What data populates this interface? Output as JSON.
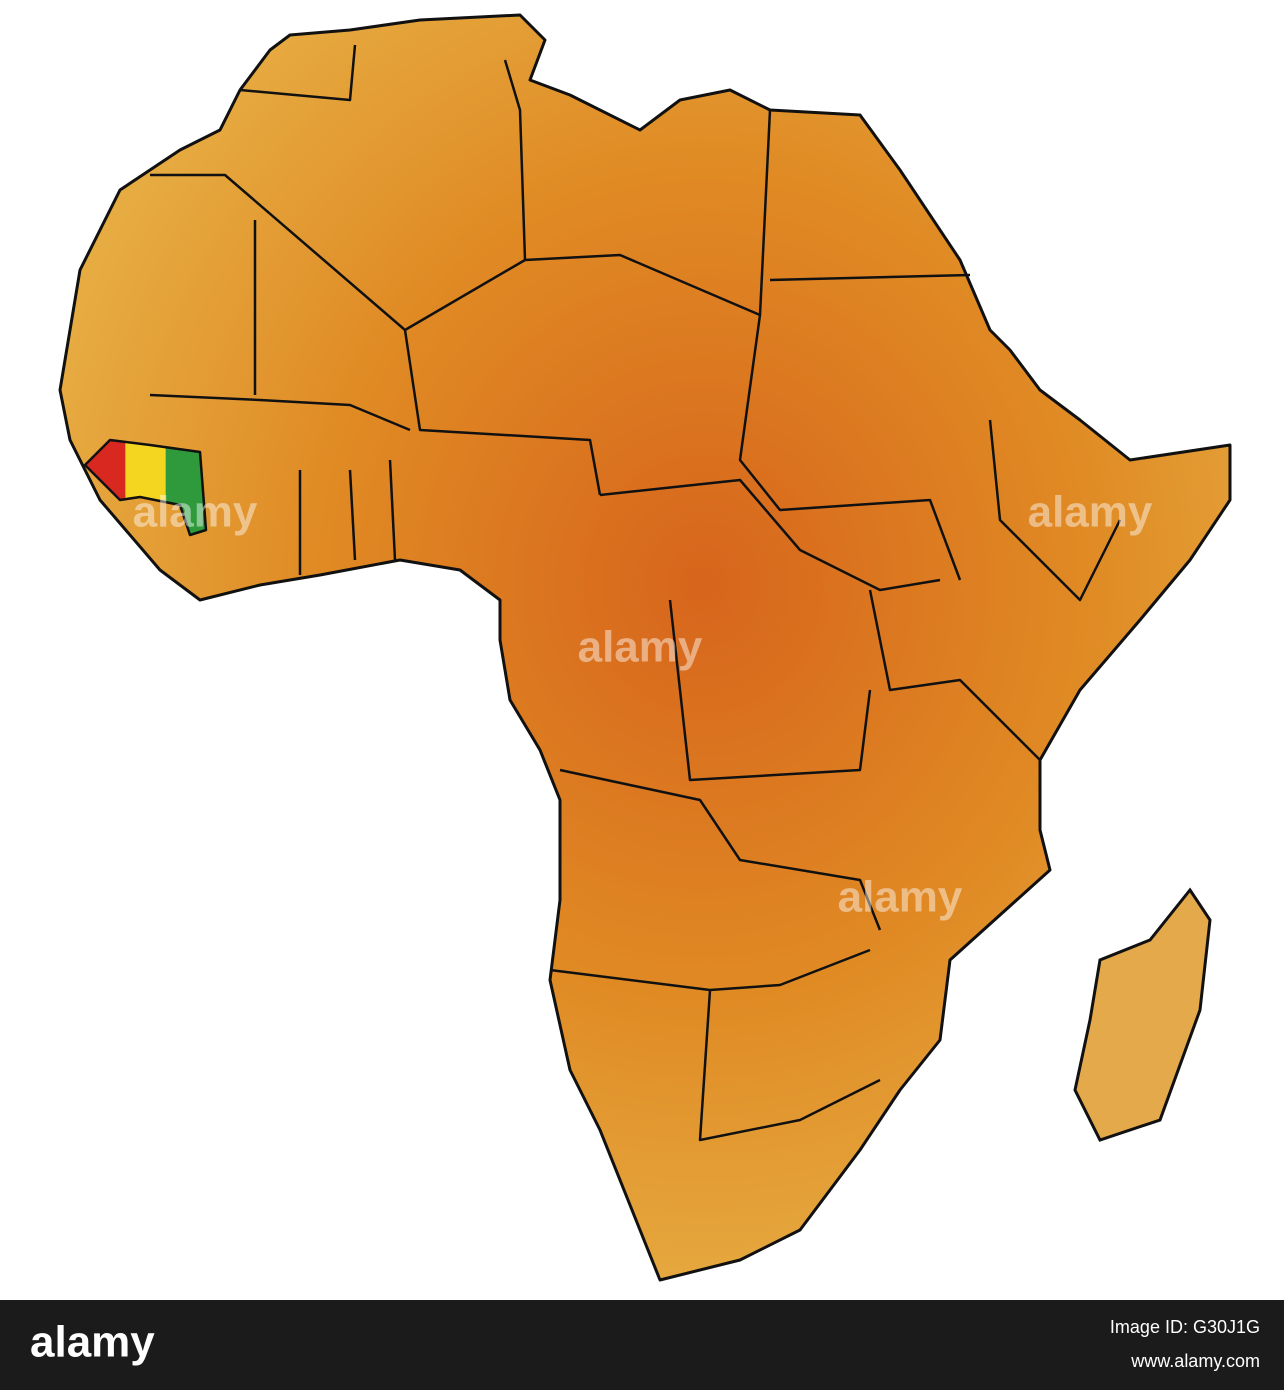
{
  "map": {
    "highlighted_country_flag": [
      "#d8281f",
      "#f4d620",
      "#2f9a3c"
    ]
  },
  "watermark": "alamy",
  "footer": {
    "logo": "alamy",
    "image_id": "Image ID: G30J1G",
    "url": "www.alamy.com"
  }
}
